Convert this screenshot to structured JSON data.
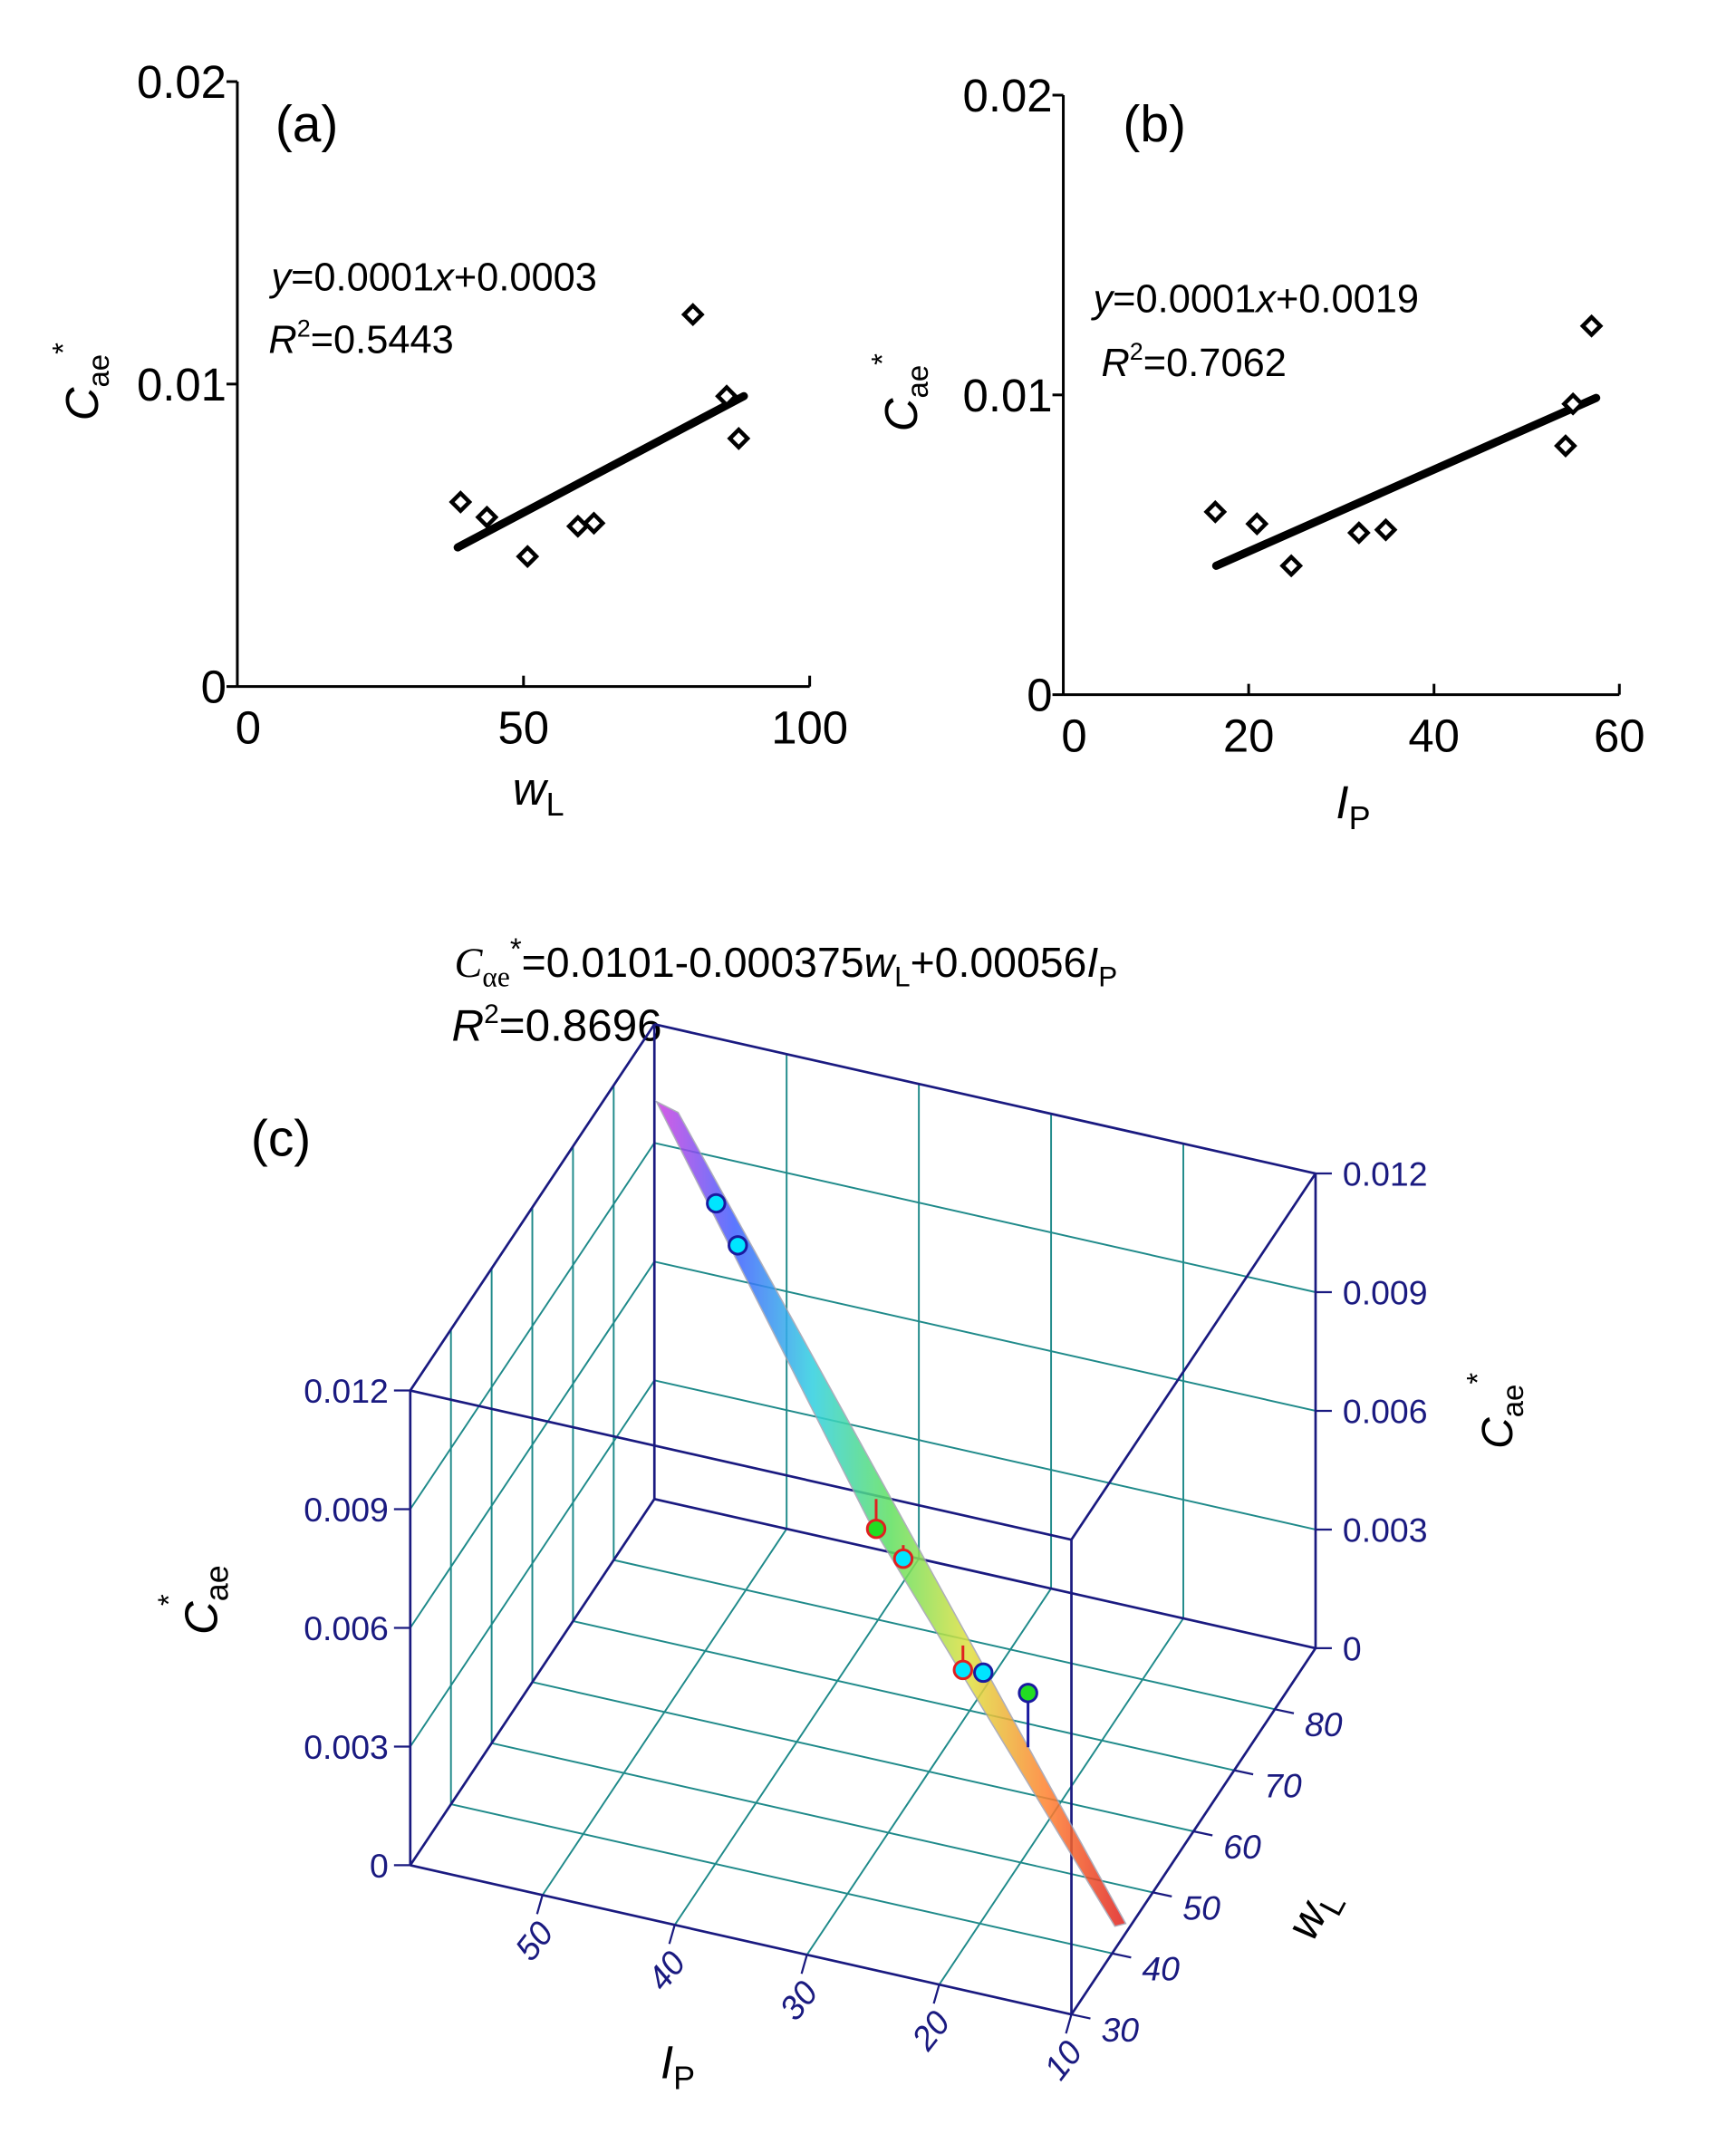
{
  "chart_data": [
    {
      "type": "scatter",
      "panel_label": "(a)",
      "xlabel": {
        "main": "w",
        "sub": "L"
      },
      "ylabel": {
        "main": "C",
        "sub": "ae",
        "sup": "*"
      },
      "xlim": [
        0,
        100
      ],
      "ylim": [
        0,
        0.02
      ],
      "xticks": [
        "0",
        "50",
        "100"
      ],
      "xtick_values": [
        0,
        50,
        100
      ],
      "yticks": [
        "0",
        "0.01",
        "0.02"
      ],
      "ytick_values": [
        0,
        0.01,
        0.02
      ],
      "x": [
        39.0,
        43.6,
        50.7,
        59.5,
        62.3,
        79.6,
        85.5,
        87.6
      ],
      "y": [
        0.0061,
        0.0056,
        0.0043,
        0.0053,
        0.0054,
        0.0123,
        0.0096,
        0.0082
      ],
      "fit_line": {
        "x": [
          38.5,
          88.5
        ],
        "y": [
          0.0046,
          0.0096
        ]
      },
      "equation": {
        "y": "y",
        "rest": "=0.0001",
        "x": "x",
        "tail": "+0.0003"
      },
      "r2": {
        "r": "R",
        "sup": "2",
        "value": "=0.5443"
      }
    },
    {
      "type": "scatter",
      "panel_label": "(b)",
      "xlabel": {
        "main": "I",
        "sub": "P"
      },
      "ylabel": {
        "main": "C",
        "sub": "ae",
        "sup": "*"
      },
      "xlim": [
        0,
        60
      ],
      "ylim": [
        0,
        0.02
      ],
      "xticks": [
        "0",
        "20",
        "40",
        "60"
      ],
      "xtick_values": [
        0,
        20,
        40,
        60
      ],
      "yticks": [
        "0",
        "0.01",
        "0.02"
      ],
      "ytick_values": [
        0,
        0.01,
        0.02
      ],
      "x": [
        16.4,
        20.9,
        24.6,
        31.9,
        34.8,
        54.2,
        55.0,
        57.0
      ],
      "y": [
        0.0061,
        0.0057,
        0.0043,
        0.0054,
        0.0055,
        0.0083,
        0.0097,
        0.0123
      ],
      "fit_line": {
        "x": [
          16.5,
          57.5
        ],
        "y": [
          0.0043,
          0.0099
        ]
      },
      "equation": {
        "y": "y",
        "rest": "=0.0001",
        "x": "x",
        "tail": "+0.0019"
      },
      "r2": {
        "r": "R",
        "sup": "2",
        "value": "=0.7062"
      }
    },
    {
      "type": "scatter3d-surface",
      "panel_label": "(c)",
      "title": {
        "c": "C",
        "sub": "αe",
        "sup": "*",
        "eq1": "=0.0101-0.000375",
        "w": "w",
        "wsub": "L",
        "eq2": "+0.00056",
        "i": "I",
        "isub": "P"
      },
      "r2": {
        "r": "R",
        "sup": "2",
        "value": "=0.8696"
      },
      "zlabel": {
        "main": "C",
        "sub": "ae",
        "sup": "*"
      },
      "xlabel": {
        "main": "I",
        "sub": "P"
      },
      "ylabel": {
        "main": "w",
        "sub": "L"
      },
      "xlim": [
        10,
        60
      ],
      "ylim": [
        30,
        90
      ],
      "zlim": [
        0,
        0.012
      ],
      "xticks": [
        "10",
        "20",
        "30",
        "40",
        "50"
      ],
      "xtick_values": [
        10,
        20,
        30,
        40,
        50
      ],
      "yticks": [
        "30",
        "40",
        "50",
        "60",
        "70",
        "80"
      ],
      "ytick_values": [
        30,
        40,
        50,
        60,
        70,
        80
      ],
      "zticks": [
        "0",
        "0.003",
        "0.006",
        "0.009",
        "0.012"
      ],
      "ztick_values": [
        0,
        0.003,
        0.006,
        0.009,
        0.012
      ],
      "surface": {
        "intercept": 0.0101,
        "coef_wL": -0.000375,
        "coef_IP": 0.00056
      },
      "points": [
        {
          "label": "p1",
          "color": "#00e5ff",
          "edge": "#1a1aa0"
        },
        {
          "label": "p2",
          "color": "#00e5ff",
          "edge": "#1a1aa0"
        },
        {
          "label": "p3",
          "color": "#22dd22",
          "edge": "#e02020"
        },
        {
          "label": "p4",
          "color": "#00e5ff",
          "edge": "#e02020"
        },
        {
          "label": "p5",
          "color": "#00e5ff",
          "edge": "#e02020"
        },
        {
          "label": "p6",
          "color": "#00e5ff",
          "edge": "#1a1aa0"
        },
        {
          "label": "p7",
          "color": "#22dd22",
          "edge": "#1a1aa0"
        }
      ],
      "colors": {
        "box": "#1a1a80",
        "grid": "#1f8a8a",
        "text": "#1a1a80"
      }
    }
  ]
}
